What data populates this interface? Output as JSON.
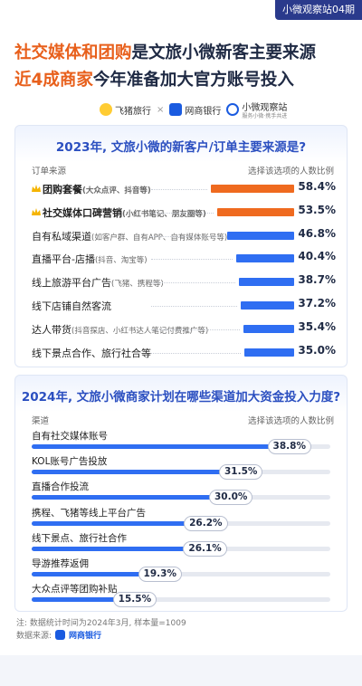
{
  "badge": "小微观察站04期",
  "title": {
    "line1_hl": "社交媒体和团购",
    "line1_rest": "是文旅小微新客主要来源",
    "line2_hl": "近4成商家",
    "line2_rest": "今年准备加大官方账号投入"
  },
  "logos": {
    "feizhu": "飞猪旅行",
    "times": "×",
    "wangshang": "网商银行",
    "xiaowei": "小微观察站",
    "xiaowei_sub": "服务小微·携手共进"
  },
  "colors": {
    "orange": "#ef6a1f",
    "blue": "#2f6ef2",
    "title_blue": "#2b4fc0",
    "highlight": "#e8601c"
  },
  "chart_data": [
    {
      "type": "bar",
      "title": "2023年, 文旅小微的新客户/订单主要来源是?",
      "col_left": "订单来源",
      "col_right": "选择该选项的人数比例",
      "unit": "%",
      "xlim": [
        0,
        60
      ],
      "categories": [
        {
          "label": "团购套餐",
          "sub": "(大众点评、抖音等)",
          "crown": true
        },
        {
          "label": "社交媒体口碑营销",
          "sub": "(小红书笔记、朋友圈等)",
          "crown": true
        },
        {
          "label": "自有私域渠道",
          "sub": "(如客户群、自有APP、自有媒体账号等)",
          "crown": false
        },
        {
          "label": "直播平台-店播",
          "sub": "(抖音、淘宝等)",
          "crown": false
        },
        {
          "label": "线上旅游平台广告",
          "sub": "(飞猪、携程等)",
          "crown": false
        },
        {
          "label": "线下店铺自然客流",
          "sub": "",
          "crown": false
        },
        {
          "label": "达人带货",
          "sub": "(抖音探店、小红书达人笔记付费推广等)",
          "crown": false
        },
        {
          "label": "线下景点合作、旅行社合等",
          "sub": "",
          "crown": false
        }
      ],
      "values": [
        58.4,
        53.5,
        46.8,
        40.4,
        38.7,
        37.2,
        35.4,
        35.0
      ],
      "value_labels": [
        "58.4%",
        "53.5%",
        "46.8%",
        "40.4%",
        "38.7%",
        "37.2%",
        "35.4%",
        "35.0%"
      ]
    },
    {
      "type": "bar",
      "title": "2024年, 文旅小微商家计划在哪些渠道加大资金投入力度?",
      "col_left": "渠道",
      "col_right": "选择该选项的人数比例",
      "unit": "%",
      "xlim": [
        0,
        45
      ],
      "categories": [
        {
          "label": "自有社交媒体账号"
        },
        {
          "label": "KOL账号广告投放"
        },
        {
          "label": "直播合作投流"
        },
        {
          "label": "携程、飞猪等线上平台广告"
        },
        {
          "label": "线下景点、旅行社合作"
        },
        {
          "label": "导游推荐返佣"
        },
        {
          "label": "大众点评等团购补贴"
        }
      ],
      "values": [
        38.8,
        31.5,
        30.0,
        26.2,
        26.1,
        19.3,
        15.5
      ],
      "value_labels": [
        "38.8%",
        "31.5%",
        "30.0%",
        "26.2%",
        "26.1%",
        "19.3%",
        "15.5%"
      ]
    }
  ],
  "notes": {
    "stats": "注: 数据统计时间为2024年3月, 样本量=1009",
    "source_label": "数据来源:",
    "source_brand": "网商银行"
  }
}
